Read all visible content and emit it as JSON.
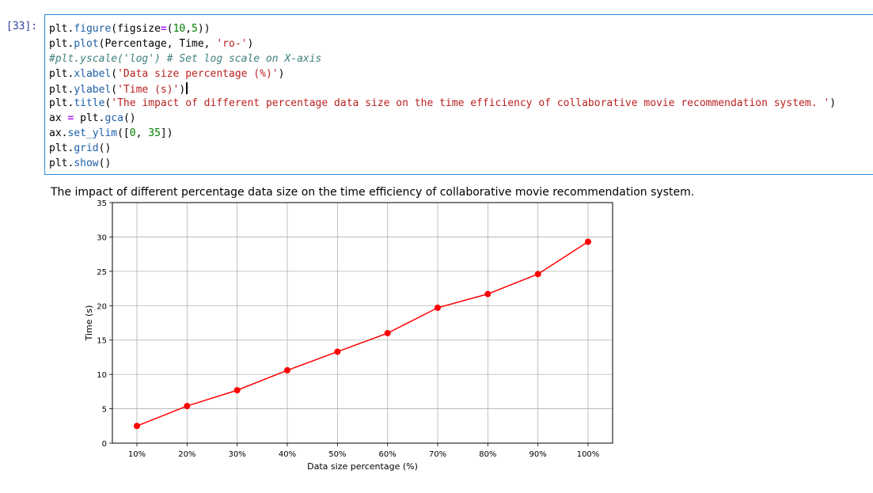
{
  "cell": {
    "prompt": "[33]:",
    "code_lines": [
      [
        {
          "t": "plt."
        },
        {
          "t": "figure",
          "c": "fn"
        },
        {
          "t": "(figsize"
        },
        {
          "t": "=",
          "c": "op"
        },
        {
          "t": "("
        },
        {
          "t": "10",
          "c": "num"
        },
        {
          "t": ","
        },
        {
          "t": "5",
          "c": "num"
        },
        {
          "t": "))"
        }
      ],
      [
        {
          "t": "plt."
        },
        {
          "t": "plot",
          "c": "fn"
        },
        {
          "t": "(Percentage, Time, "
        },
        {
          "t": "'ro-'",
          "c": "str"
        },
        {
          "t": ")"
        }
      ],
      [
        {
          "t": "#plt.yscale('log') # Set log scale on X-axis",
          "c": "cmt"
        }
      ],
      [
        {
          "t": "plt."
        },
        {
          "t": "xlabel",
          "c": "fn"
        },
        {
          "t": "("
        },
        {
          "t": "'Data size percentage (%)'",
          "c": "str"
        },
        {
          "t": ")"
        }
      ],
      [
        {
          "t": "plt."
        },
        {
          "t": "ylabel",
          "c": "fn"
        },
        {
          "t": "("
        },
        {
          "t": "'Time (s)'",
          "c": "str"
        },
        {
          "t": ")"
        }
      ],
      [
        {
          "t": "plt."
        },
        {
          "t": "title",
          "c": "fn"
        },
        {
          "t": "("
        },
        {
          "t": "'The impact of different percentage data size on the time efficiency of collaborative movie recommendation system. '",
          "c": "str"
        },
        {
          "t": ")"
        }
      ],
      [
        {
          "t": "ax "
        },
        {
          "t": "=",
          "c": "op"
        },
        {
          "t": " plt."
        },
        {
          "t": "gca",
          "c": "fn"
        },
        {
          "t": "()"
        }
      ],
      [
        {
          "t": "ax."
        },
        {
          "t": "set_ylim",
          "c": "fn"
        },
        {
          "t": "(["
        },
        {
          "t": "0",
          "c": "num"
        },
        {
          "t": ", "
        },
        {
          "t": "35",
          "c": "num"
        },
        {
          "t": "])"
        }
      ],
      [
        {
          "t": "plt."
        },
        {
          "t": "grid",
          "c": "fn"
        },
        {
          "t": "()"
        }
      ],
      [
        {
          "t": "plt."
        },
        {
          "t": "show",
          "c": "fn"
        },
        {
          "t": "()"
        }
      ]
    ],
    "cursor_line": 4
  },
  "colors": {
    "series": "#ff0000",
    "grid": "#b0b0b0",
    "cell_border": "#2f8ad8"
  },
  "chart_data": {
    "type": "line",
    "title": "The impact of different percentage data size on the time efficiency of collaborative movie recommendation system.",
    "xlabel": "Data size percentage (%)",
    "ylabel": "Time (s)",
    "categories": [
      "10%",
      "20%",
      "30%",
      "40%",
      "50%",
      "60%",
      "70%",
      "80%",
      "90%",
      "100%"
    ],
    "values": [
      2.5,
      5.4,
      7.7,
      10.6,
      13.3,
      16.0,
      19.7,
      21.7,
      24.6,
      29.3
    ],
    "ylim": [
      0,
      35
    ],
    "yticks": [
      0,
      5,
      10,
      15,
      20,
      25,
      30,
      35
    ],
    "grid": true,
    "style": "ro-"
  }
}
